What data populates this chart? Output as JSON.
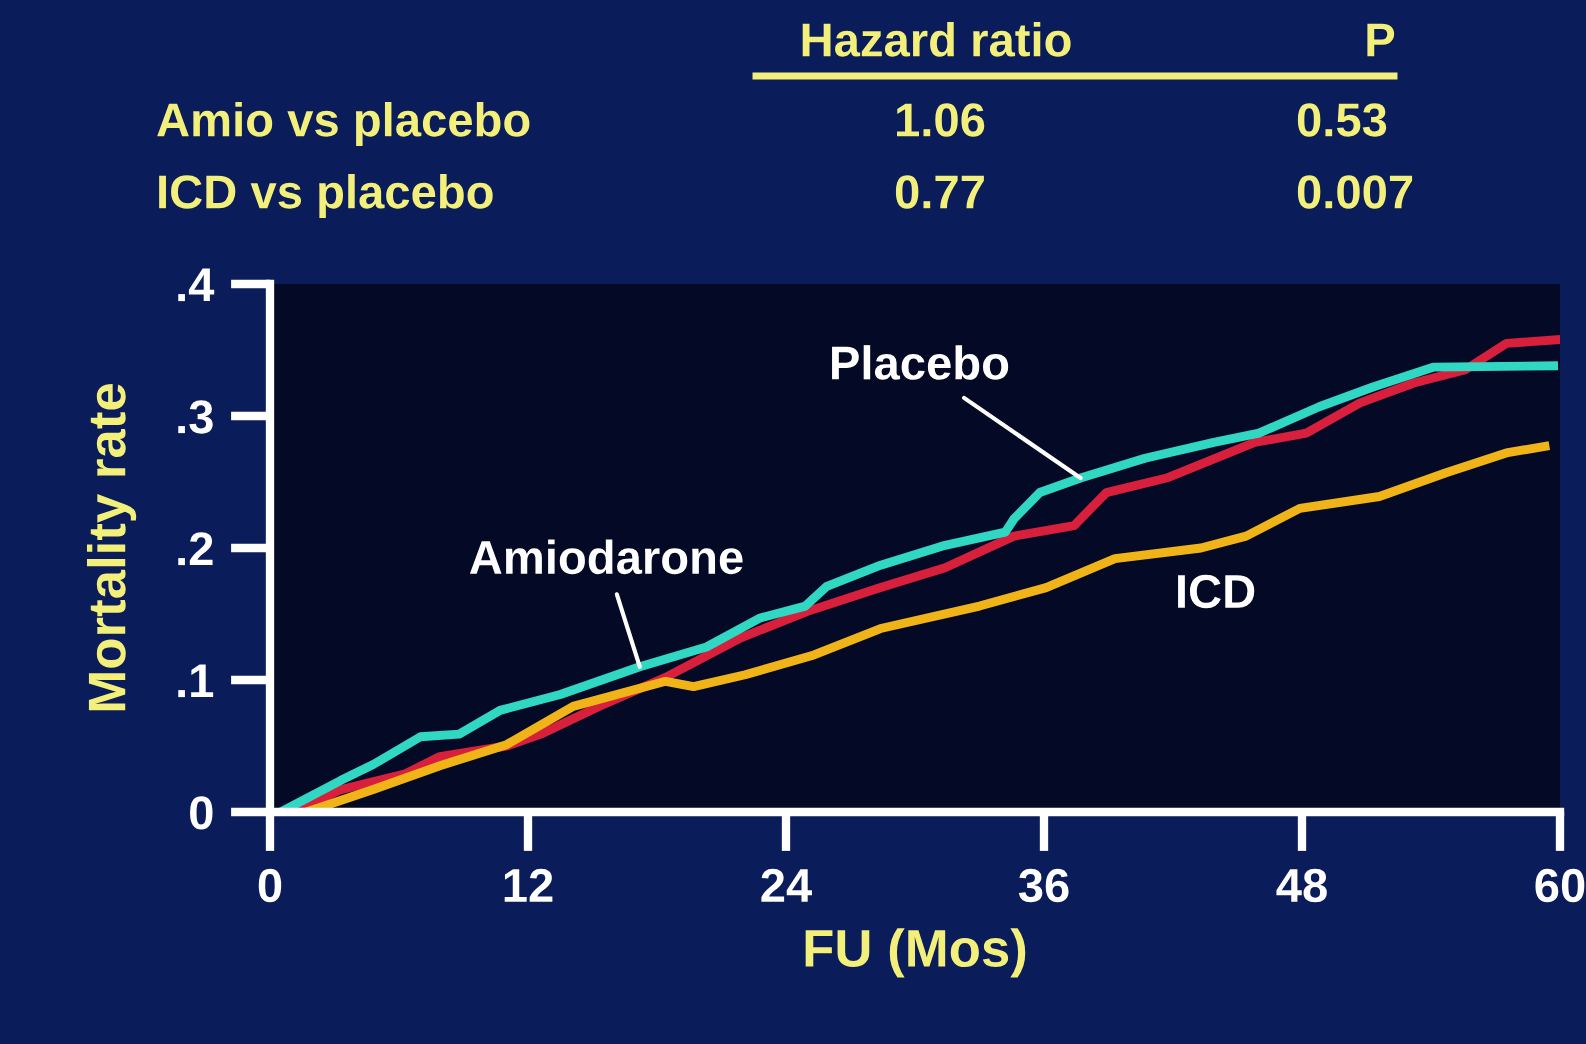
{
  "chart_data": {
    "type": "line",
    "xlabel": "FU (Mos)",
    "ylabel": "Mortality rate",
    "xlim": [
      0,
      60
    ],
    "ylim": [
      0,
      0.4
    ],
    "xticks": [
      0,
      12,
      24,
      36,
      48,
      60
    ],
    "yticks": [
      0,
      {
        "value": 0.1,
        "label": ".1"
      },
      {
        "value": 0.2,
        "label": ".2"
      },
      {
        "value": 0.3,
        "label": ".3"
      },
      {
        "value": 0.4,
        "label": ".4"
      }
    ],
    "grid": false,
    "legend": false,
    "marker": "none",
    "line_style": "solid",
    "series": [
      {
        "color": "#d8203c",
        "x": [
          1.1,
          3.3,
          6.3,
          7.9,
          11.0,
          12.6,
          15.3,
          18.4,
          21.9,
          25.0,
          28.4,
          31.4,
          34.6,
          37.4,
          38.9,
          41.7,
          45.8,
          48.2,
          50.7,
          53.2,
          55.6,
          57.5,
          60
        ],
        "values": [
          0,
          0.017,
          0.029,
          0.042,
          0.05,
          0.059,
          0.08,
          0.102,
          0.132,
          0.152,
          0.17,
          0.185,
          0.209,
          0.217,
          0.242,
          0.253,
          0.28,
          0.287,
          0.31,
          0.325,
          0.335,
          0.355,
          0.358
        ]
      },
      {
        "color": "#f0b418",
        "x": [
          1.7,
          4.8,
          7.9,
          11.0,
          14.1,
          18.4,
          19.7,
          22.1,
          25.3,
          28.4,
          33.0,
          36.1,
          39.3,
          43.3,
          45.4,
          47.9,
          51.6,
          54.7,
          57.5,
          59.3
        ],
        "values": [
          0,
          0.017,
          0.035,
          0.051,
          0.08,
          0.099,
          0.095,
          0.104,
          0.119,
          0.139,
          0.156,
          0.17,
          0.192,
          0.2,
          0.209,
          0.23,
          0.239,
          0.257,
          0.272,
          0.277
        ]
      },
      {
        "color": "#30d8c4",
        "x": [
          0.5,
          3.3,
          4.8,
          7.0,
          8.8,
          10.7,
          13.5,
          17.2,
          20.3,
          22.8,
          24.9,
          25.9,
          28.4,
          31.4,
          34.2,
          34.6,
          35.8,
          37.7,
          40.7,
          43.9,
          46.0,
          48.8,
          51.3,
          54.1,
          59.7
        ],
        "values": [
          0,
          0.024,
          0.036,
          0.057,
          0.059,
          0.077,
          0.089,
          0.11,
          0.125,
          0.147,
          0.156,
          0.171,
          0.187,
          0.202,
          0.212,
          0.222,
          0.242,
          0.253,
          0.268,
          0.28,
          0.287,
          0.307,
          0.322,
          0.337,
          0.338
        ]
      }
    ],
    "annotations": [
      "Hazard ratio",
      "P",
      "Amio vs placebo",
      "1.06",
      "0.53",
      "ICD vs placebo",
      "0.77",
      "0.007",
      {
        "text": "Amiodarone",
        "x": 17.2,
        "y": 0.11
      },
      {
        "text": "Placebo",
        "x": 37.7,
        "y": 0.253
      },
      "ICD"
    ]
  }
}
